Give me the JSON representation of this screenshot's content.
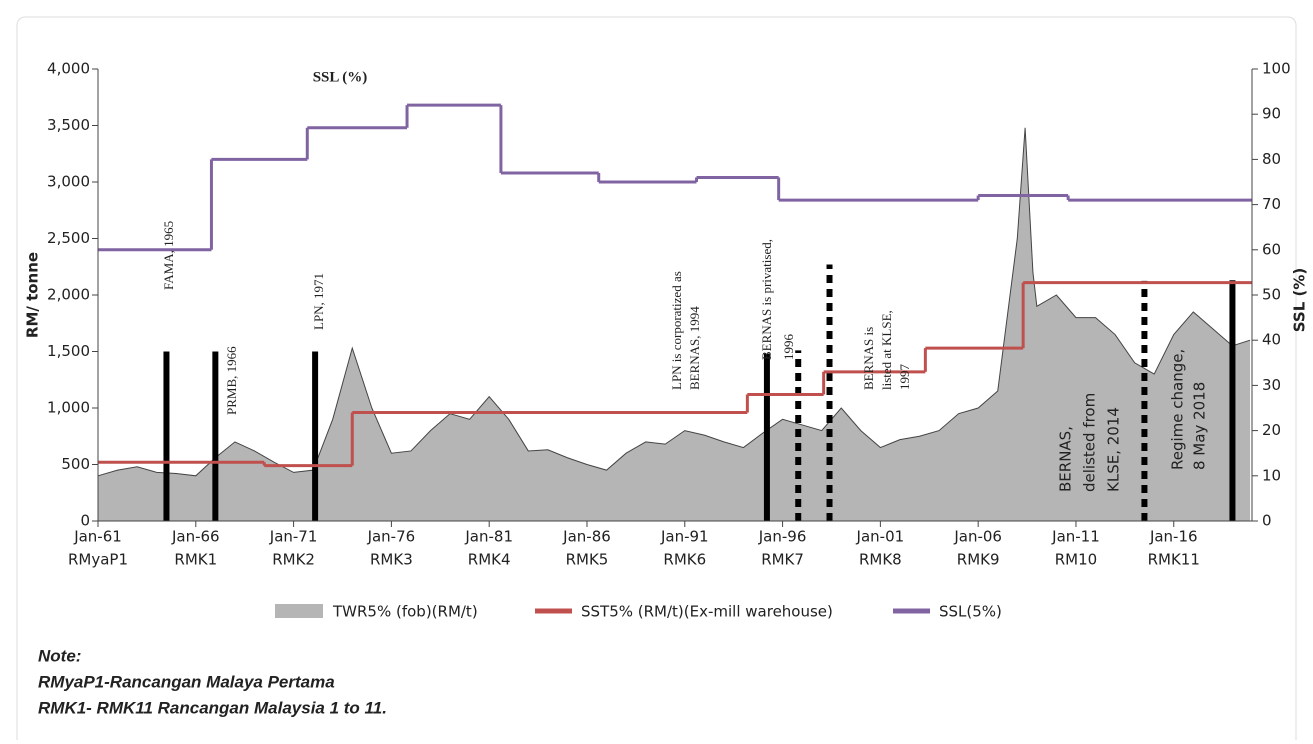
{
  "chart_data": {
    "type": "combo",
    "annotation": "SSL (%)",
    "ylabel": "RM/ tonne",
    "y2label": "SSL (%)",
    "xlim": [
      1961,
      2020
    ],
    "xticks": [
      {
        "value": 1961,
        "label": "Jan-61"
      },
      {
        "value": 1966,
        "label": "Jan-66"
      },
      {
        "value": 1971,
        "label": "Jan-71"
      },
      {
        "value": 1976,
        "label": "Jan-76"
      },
      {
        "value": 1981,
        "label": "Jan-81"
      },
      {
        "value": 1986,
        "label": "Jan-86"
      },
      {
        "value": 1991,
        "label": "Jan-91"
      },
      {
        "value": 1996,
        "label": "Jan-96"
      },
      {
        "value": 2001,
        "label": "Jan-01"
      },
      {
        "value": 2006,
        "label": "Jan-06"
      },
      {
        "value": 2011,
        "label": "Jan-11"
      },
      {
        "value": 2016,
        "label": "Jan-16"
      }
    ],
    "x_sublabels": [
      "RMyaP1",
      "RMK1",
      "RMK2",
      "RMK3",
      "RMK4",
      "RMK5",
      "RMK6",
      "RMK7",
      "RMK8",
      "RMK9",
      "RM10",
      "RMK11"
    ],
    "ylim": [
      0,
      4000
    ],
    "yticks": [
      0,
      500,
      {
        "value": 1000,
        "label": "1,000"
      },
      {
        "value": 1500,
        "label": "1,500"
      },
      {
        "value": 2000,
        "label": "2,000"
      },
      {
        "value": 2500,
        "label": "2,500"
      },
      {
        "value": 3000,
        "label": "3,000"
      },
      {
        "value": 3500,
        "label": "3,500"
      },
      {
        "value": 4000,
        "label": "4,000"
      }
    ],
    "y2lim": [
      0,
      100
    ],
    "y2ticks": [
      0,
      10,
      20,
      30,
      40,
      50,
      60,
      70,
      80,
      90,
      100
    ],
    "series": [
      {
        "name": "TWR5% (fob)(RM/t)",
        "kind": "area",
        "color": "#b5b5b5",
        "x": [
          1961,
          1962,
          1963,
          1964,
          1965,
          1966,
          1967,
          1968,
          1969,
          1970,
          1971,
          1972,
          1973,
          1974,
          1975,
          1976,
          1977,
          1978,
          1979,
          1980,
          1981,
          1982,
          1983,
          1984,
          1985,
          1986,
          1987,
          1988,
          1989,
          1990,
          1991,
          1992,
          1993,
          1994,
          1995,
          1996,
          1997,
          1998,
          1999,
          2000,
          2001,
          2002,
          2003,
          2004,
          2005,
          2006,
          2007,
          2008,
          2008.4,
          2008.8,
          2009,
          2010,
          2011,
          2012,
          2013,
          2014,
          2015,
          2016,
          2017,
          2018,
          2019,
          2019.9
        ],
        "values": [
          400,
          450,
          480,
          430,
          420,
          400,
          560,
          700,
          620,
          520,
          430,
          450,
          900,
          1530,
          1000,
          600,
          620,
          800,
          950,
          900,
          1100,
          900,
          620,
          630,
          560,
          500,
          450,
          600,
          700,
          680,
          800,
          760,
          700,
          650,
          780,
          900,
          850,
          800,
          1000,
          800,
          650,
          720,
          750,
          800,
          950,
          1000,
          1150,
          2500,
          3480,
          2200,
          1900,
          2000,
          1800,
          1800,
          1650,
          1400,
          1300,
          1650,
          1850,
          1700,
          1550,
          1600
        ]
      },
      {
        "name": "SST5% (RM/t)(Ex-mill warehouse)",
        "kind": "step",
        "color": "#c0504d",
        "x": [
          1961,
          1969.5,
          1974,
          1994.2,
          1998.1,
          2003.3,
          2008.3
        ],
        "values": [
          520,
          490,
          960,
          1120,
          1320,
          1530,
          2110
        ]
      },
      {
        "name": "SSL(5%)",
        "kind": "step",
        "axis": "y2",
        "color": "#8064a2",
        "x": [
          1961,
          1966.8,
          1971.7,
          1976.8,
          1981.6,
          1986.6,
          1991.6,
          1995.8,
          2006,
          2010.6
        ],
        "values": [
          60,
          80,
          87,
          92,
          77,
          75,
          76,
          71,
          72,
          71
        ]
      }
    ],
    "event_lines": [
      {
        "x": 1964.5,
        "top": 1500,
        "style": "solid"
      },
      {
        "x": 1967,
        "top": 1500,
        "style": "solid"
      },
      {
        "x": 1972.1,
        "top": 1500,
        "style": "solid"
      },
      {
        "x": 1995.2,
        "top": 1480,
        "style": "solid"
      },
      {
        "x": 1996.8,
        "top": 1510,
        "style": "dashed"
      },
      {
        "x": 1998.4,
        "top": 2270,
        "style": "dashed"
      },
      {
        "x": 2014.5,
        "top": 2125,
        "style": "dashed"
      },
      {
        "x": 2019,
        "top": 2130,
        "style": "solid"
      }
    ],
    "event_labels": [
      [
        "FAMA, 1965"
      ],
      [
        "PRMB, 1966"
      ],
      [
        "LPN, 1971"
      ],
      [
        "LPN is corporatized as",
        "BERNAS, 1994"
      ],
      [
        "BERNAS is privatised,",
        "1996"
      ],
      [
        "BERNAS is",
        "listed at KLSE,",
        "1997"
      ],
      [
        "BERNAS,",
        "delisted from",
        "KLSE, 2014"
      ],
      [
        "Regime change,",
        "8 May 2018"
      ]
    ]
  },
  "notes": [
    "Note:",
    "RMyaP1-Rancangan Malaya Pertama",
    "RMK1- RMK11 Rancangan Malaysia 1 to 11."
  ]
}
